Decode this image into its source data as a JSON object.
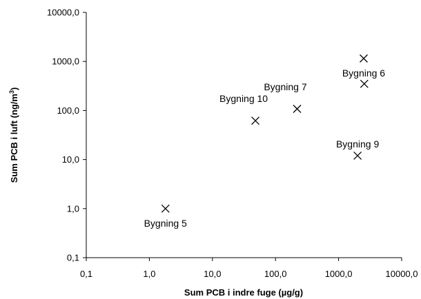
{
  "chart_data": {
    "type": "scatter",
    "title": "",
    "xlabel": "Sum PCB i indre fuge (µg/g)",
    "ylabel_main": "Sum PCB i luft (ng/m",
    "ylabel_sup": "3",
    "ylabel_end": ")",
    "x_scale": "log",
    "y_scale": "log",
    "xlim": [
      0.1,
      10000
    ],
    "ylim": [
      0.1,
      10000
    ],
    "x_ticks": [
      {
        "value": 0.1,
        "label": "0,1"
      },
      {
        "value": 1,
        "label": "1,0"
      },
      {
        "value": 10,
        "label": "10,0"
      },
      {
        "value": 100,
        "label": "100,0"
      },
      {
        "value": 1000,
        "label": "1000,0"
      },
      {
        "value": 10000,
        "label": "10000,0"
      }
    ],
    "y_ticks": [
      {
        "value": 0.1,
        "label": "0,1"
      },
      {
        "value": 1,
        "label": "1,0"
      },
      {
        "value": 10,
        "label": "10,0"
      },
      {
        "value": 100,
        "label": "100,0"
      },
      {
        "value": 1000,
        "label": "1000,0"
      },
      {
        "value": 10000,
        "label": "10000,0"
      }
    ],
    "grid": false,
    "marker": "x",
    "points": [
      {
        "x": 1.8,
        "y": 1.0,
        "label": "Bygning 5",
        "label_pos": "below"
      },
      {
        "x": 48,
        "y": 62,
        "label": "Bygning 10",
        "label_pos": "above-left"
      },
      {
        "x": 220,
        "y": 108,
        "label": "Bygning 7",
        "label_pos": "above-left"
      },
      {
        "x": 2500,
        "y": 1150,
        "label": "Bygning 6",
        "label_pos": "below"
      },
      {
        "x": 2550,
        "y": 350,
        "label": "",
        "label_pos": "none"
      },
      {
        "x": 2000,
        "y": 12,
        "label": "Bygning 9",
        "label_pos": "above"
      }
    ]
  }
}
